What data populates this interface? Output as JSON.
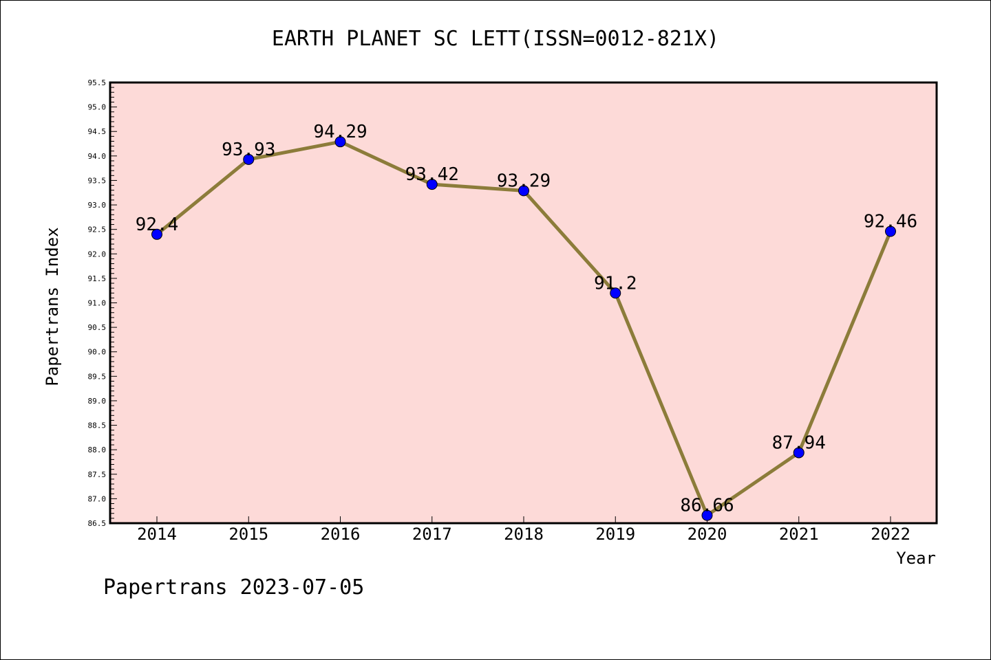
{
  "chart_data": {
    "type": "line",
    "title": "EARTH PLANET SC LETT(ISSN=0012-821X)",
    "xlabel": "Year",
    "ylabel": "Papertrans Index",
    "categories": [
      "2014",
      "2015",
      "2016",
      "2017",
      "2018",
      "2019",
      "2020",
      "2021",
      "2022"
    ],
    "values": [
      92.4,
      93.93,
      94.29,
      93.42,
      93.29,
      91.2,
      86.66,
      87.94,
      92.46
    ],
    "data_labels": [
      "92.4",
      "93.93",
      "94.29",
      "93.42",
      "93.29",
      "91.2",
      "86.66",
      "87.94",
      "92.46"
    ],
    "ylim": [
      86.5,
      95.5
    ],
    "yticks": [
      "86.5",
      "87.0",
      "87.5",
      "88.0",
      "88.5",
      "89.0",
      "89.5",
      "90.0",
      "90.5",
      "91.0",
      "91.5",
      "92.0",
      "92.5",
      "93.0",
      "93.5",
      "94.0",
      "94.5",
      "95.0",
      "95.5"
    ],
    "grid": false,
    "legend": "none",
    "colors": {
      "plot_background": "#fddad8",
      "line": "#8c7c3a",
      "marker": "#0000ff",
      "axis": "#000000"
    }
  },
  "footer": {
    "text": "Papertrans 2023-07-05"
  }
}
